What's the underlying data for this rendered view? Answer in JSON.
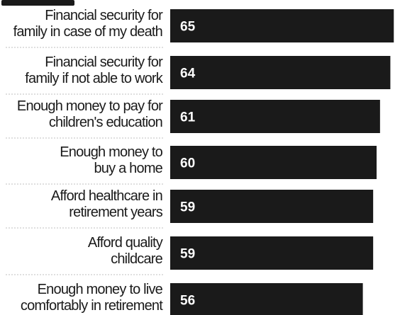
{
  "chart_data": {
    "type": "bar",
    "orientation": "horizontal",
    "categories": [
      [
        "Financial security for",
        "family in case of my death"
      ],
      [
        "Financial security for",
        "family if not able to work"
      ],
      [
        "Enough money to pay for",
        "children's education"
      ],
      [
        "Enough money to",
        "buy a home"
      ],
      [
        "Afford healthcare in",
        "retirement years"
      ],
      [
        "Afford quality",
        "childcare"
      ],
      [
        "Enough money to live",
        "comfortably in retirement"
      ]
    ],
    "values": [
      65,
      64,
      61,
      60,
      59,
      59,
      56
    ],
    "value_labels": [
      "65",
      "64",
      "61",
      "60",
      "59",
      "59",
      "56"
    ],
    "bar_color": "#1a1a1a",
    "value_label_color": "#ffffff",
    "grid": false,
    "legend": "none"
  }
}
